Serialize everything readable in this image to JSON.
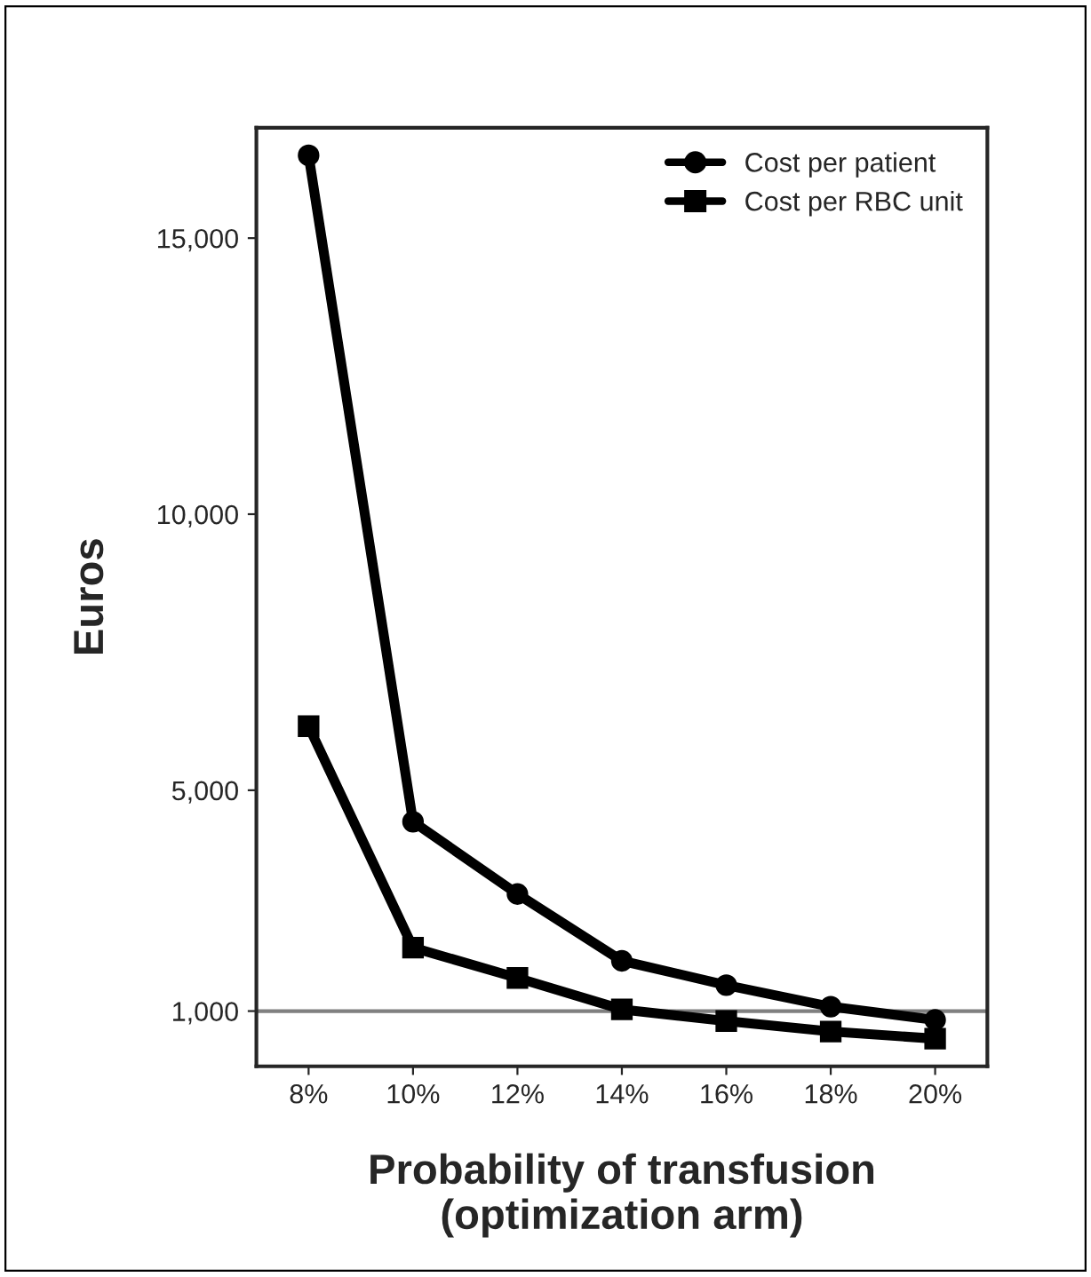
{
  "chart_data": {
    "type": "line",
    "xlabel": "Probability of transfusion\n(optimization arm)",
    "ylabel": "Euros",
    "categories": [
      "8%",
      "10%",
      "12%",
      "14%",
      "16%",
      "18%",
      "20%"
    ],
    "series": [
      {
        "name": "Cost per patient",
        "color": "#000000",
        "marker": "circle",
        "values": [
          16500,
          4430,
          3120,
          1910,
          1470,
          1080,
          840
        ]
      },
      {
        "name": "Cost per RBC unit",
        "color": "#000000",
        "marker": "square",
        "values": [
          6160,
          2150,
          1600,
          1030,
          820,
          630,
          500
        ]
      }
    ],
    "ylim": [
      0,
      17000
    ],
    "yticks": [
      {
        "value": 1000,
        "label": "1,000"
      },
      {
        "value": 5000,
        "label": "5,000"
      },
      {
        "value": 10000,
        "label": "10,000"
      },
      {
        "value": 15000,
        "label": "15,000"
      }
    ],
    "ref_lines": [
      {
        "axis": "y",
        "value": 1000,
        "color": "#808080"
      }
    ],
    "legend": "top right",
    "grid": false,
    "line_style": "solid"
  }
}
